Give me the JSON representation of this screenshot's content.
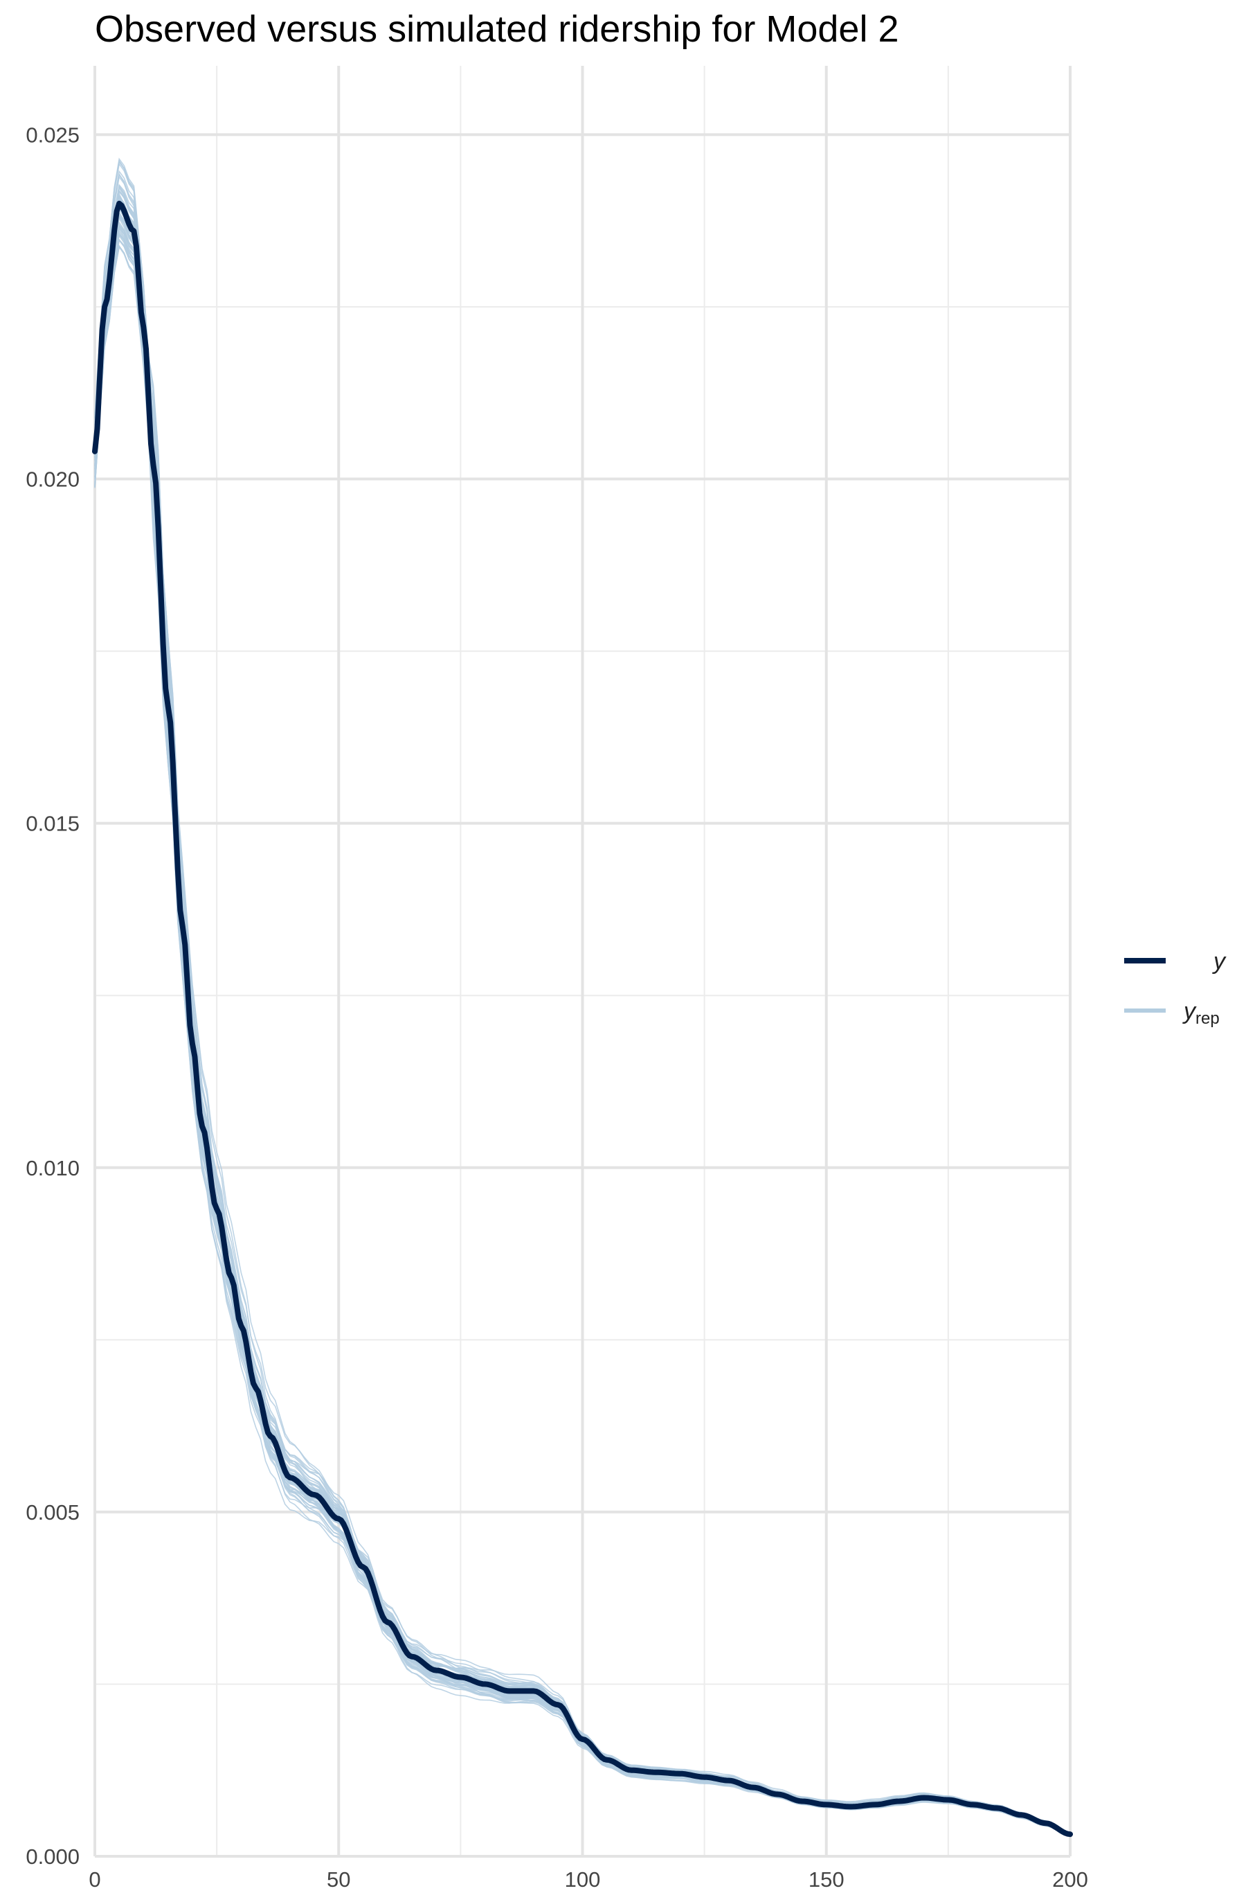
{
  "chart_data": {
    "type": "line",
    "title": "Observed versus simulated ridership for Model 2",
    "xlabel": "",
    "ylabel": "",
    "xlim": [
      0,
      200
    ],
    "ylim": [
      0,
      0.026
    ],
    "x_ticks": [
      "0",
      "50",
      "100",
      "150",
      "200"
    ],
    "y_ticks": [
      "0.000",
      "0.005",
      "0.010",
      "0.015",
      "0.020",
      "0.025"
    ],
    "grid": true,
    "legend_position": "right",
    "legend": [
      {
        "label": "y",
        "color": "#011f4b"
      },
      {
        "label": "y",
        "subscript": "rep",
        "color": "#b3cde0"
      }
    ],
    "colors": {
      "y": "#011f4b",
      "yrep": "#b3cde0"
    },
    "series": [
      {
        "name": "y",
        "x": [
          0,
          2,
          5,
          8,
          10,
          12,
          15,
          18,
          20,
          22,
          25,
          28,
          30,
          33,
          36,
          40,
          45,
          50,
          55,
          60,
          65,
          70,
          75,
          80,
          85,
          90,
          95,
          100,
          105,
          110,
          115,
          120,
          125,
          130,
          135,
          140,
          145,
          150,
          155,
          160,
          165,
          170,
          175,
          180,
          185,
          190,
          195,
          200
        ],
        "values": [
          0.0204,
          0.0225,
          0.024,
          0.0236,
          0.0222,
          0.0202,
          0.0167,
          0.0135,
          0.0118,
          0.0106,
          0.0094,
          0.0084,
          0.0077,
          0.0068,
          0.0061,
          0.0055,
          0.00525,
          0.0049,
          0.0042,
          0.0034,
          0.0029,
          0.0027,
          0.0026,
          0.0025,
          0.0024,
          0.0024,
          0.0022,
          0.0017,
          0.0014,
          0.00125,
          0.00122,
          0.0012,
          0.00115,
          0.0011,
          0.001,
          0.0009,
          0.0008,
          0.00075,
          0.00072,
          0.00075,
          0.0008,
          0.00085,
          0.00082,
          0.00075,
          0.0007,
          0.0006,
          0.00048,
          0.00032
        ]
      }
    ],
    "replicates": {
      "name": "yrep",
      "count": 60
    }
  }
}
